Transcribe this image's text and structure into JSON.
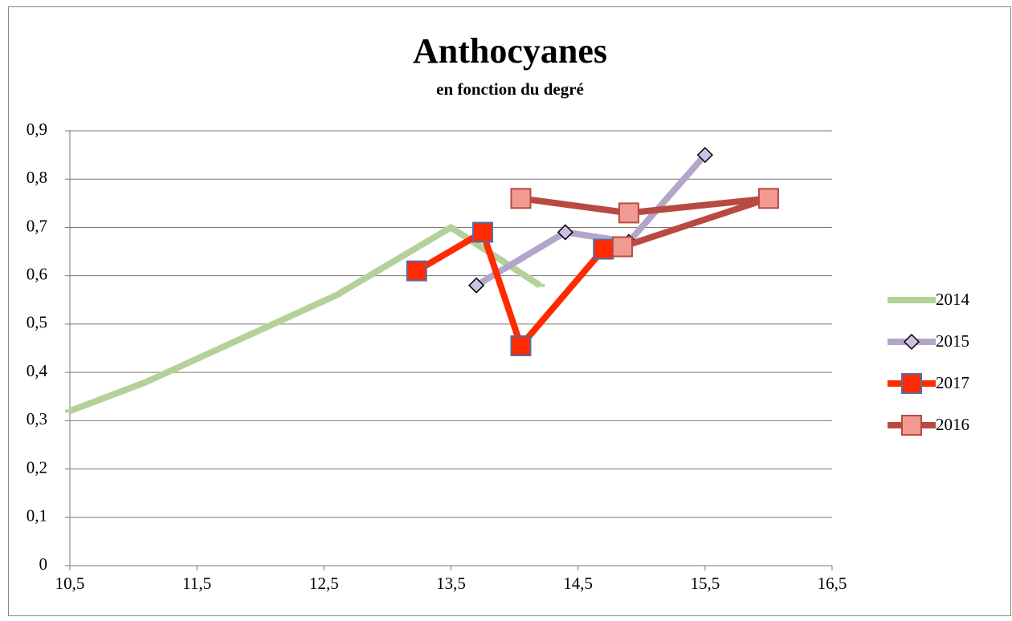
{
  "chart_data": {
    "type": "line_scatter",
    "title": "Anthocyanes",
    "subtitle": "en  fonction du degré",
    "xlim": [
      10.5,
      16.5
    ],
    "xticks": [
      {
        "value": 10.5,
        "label": "10,5"
      },
      {
        "value": 11.5,
        "label": "11,5"
      },
      {
        "value": 12.5,
        "label": "12,5"
      },
      {
        "value": 13.5,
        "label": "13,5"
      },
      {
        "value": 14.5,
        "label": "14,5"
      },
      {
        "value": 15.5,
        "label": "15,5"
      },
      {
        "value": 16.5,
        "label": "16,5"
      }
    ],
    "ylim": [
      0,
      0.9
    ],
    "yticks": [
      0,
      {
        "value": 0.1,
        "label": "0,1"
      },
      {
        "value": 0.2,
        "label": "0,2"
      },
      {
        "value": 0.3,
        "label": "0,3"
      },
      {
        "value": 0.4,
        "label": "0,4"
      },
      {
        "value": 0.5,
        "label": "0,5"
      },
      {
        "value": 0.6,
        "label": "0,6"
      },
      {
        "value": 0.7,
        "label": "0,7"
      },
      {
        "value": 0.8,
        "label": "0,8"
      },
      {
        "value": 0.9,
        "label": "0,9"
      }
    ],
    "grid": true,
    "legend": "right",
    "series": [
      {
        "name": "2014",
        "color": "#b5d19a",
        "marker": "dash",
        "marker_fill": "#b5d19a",
        "marker_stroke": "#b5d19a",
        "x": [
          10.5,
          11.1,
          12.6,
          13.5,
          14.2
        ],
        "values": [
          0.32,
          0.38,
          0.56,
          0.7,
          0.58
        ]
      },
      {
        "name": "2015",
        "color": "#b3a6c9",
        "marker": "diamond",
        "marker_fill": "#cdbfe6",
        "marker_stroke": "#000000",
        "x": [
          13.7,
          14.4,
          14.9,
          15.5
        ],
        "values": [
          0.58,
          0.69,
          0.67,
          0.85
        ]
      },
      {
        "name": "2017",
        "color": "#ff2a00",
        "marker": "square",
        "marker_fill": "#ff2a00",
        "marker_stroke": "#4f6fa8",
        "x": [
          13.23,
          13.75,
          14.05,
          14.7
        ],
        "values": [
          0.61,
          0.69,
          0.455,
          0.655
        ]
      },
      {
        "name": "2016",
        "color": "#b94a42",
        "marker": "square",
        "marker_fill": "#f19a92",
        "marker_stroke": "#b94a42",
        "x": [
          14.05,
          14.9,
          16,
          14.85
        ],
        "values": [
          0.76,
          0.73,
          0.76,
          0.66
        ]
      }
    ]
  }
}
